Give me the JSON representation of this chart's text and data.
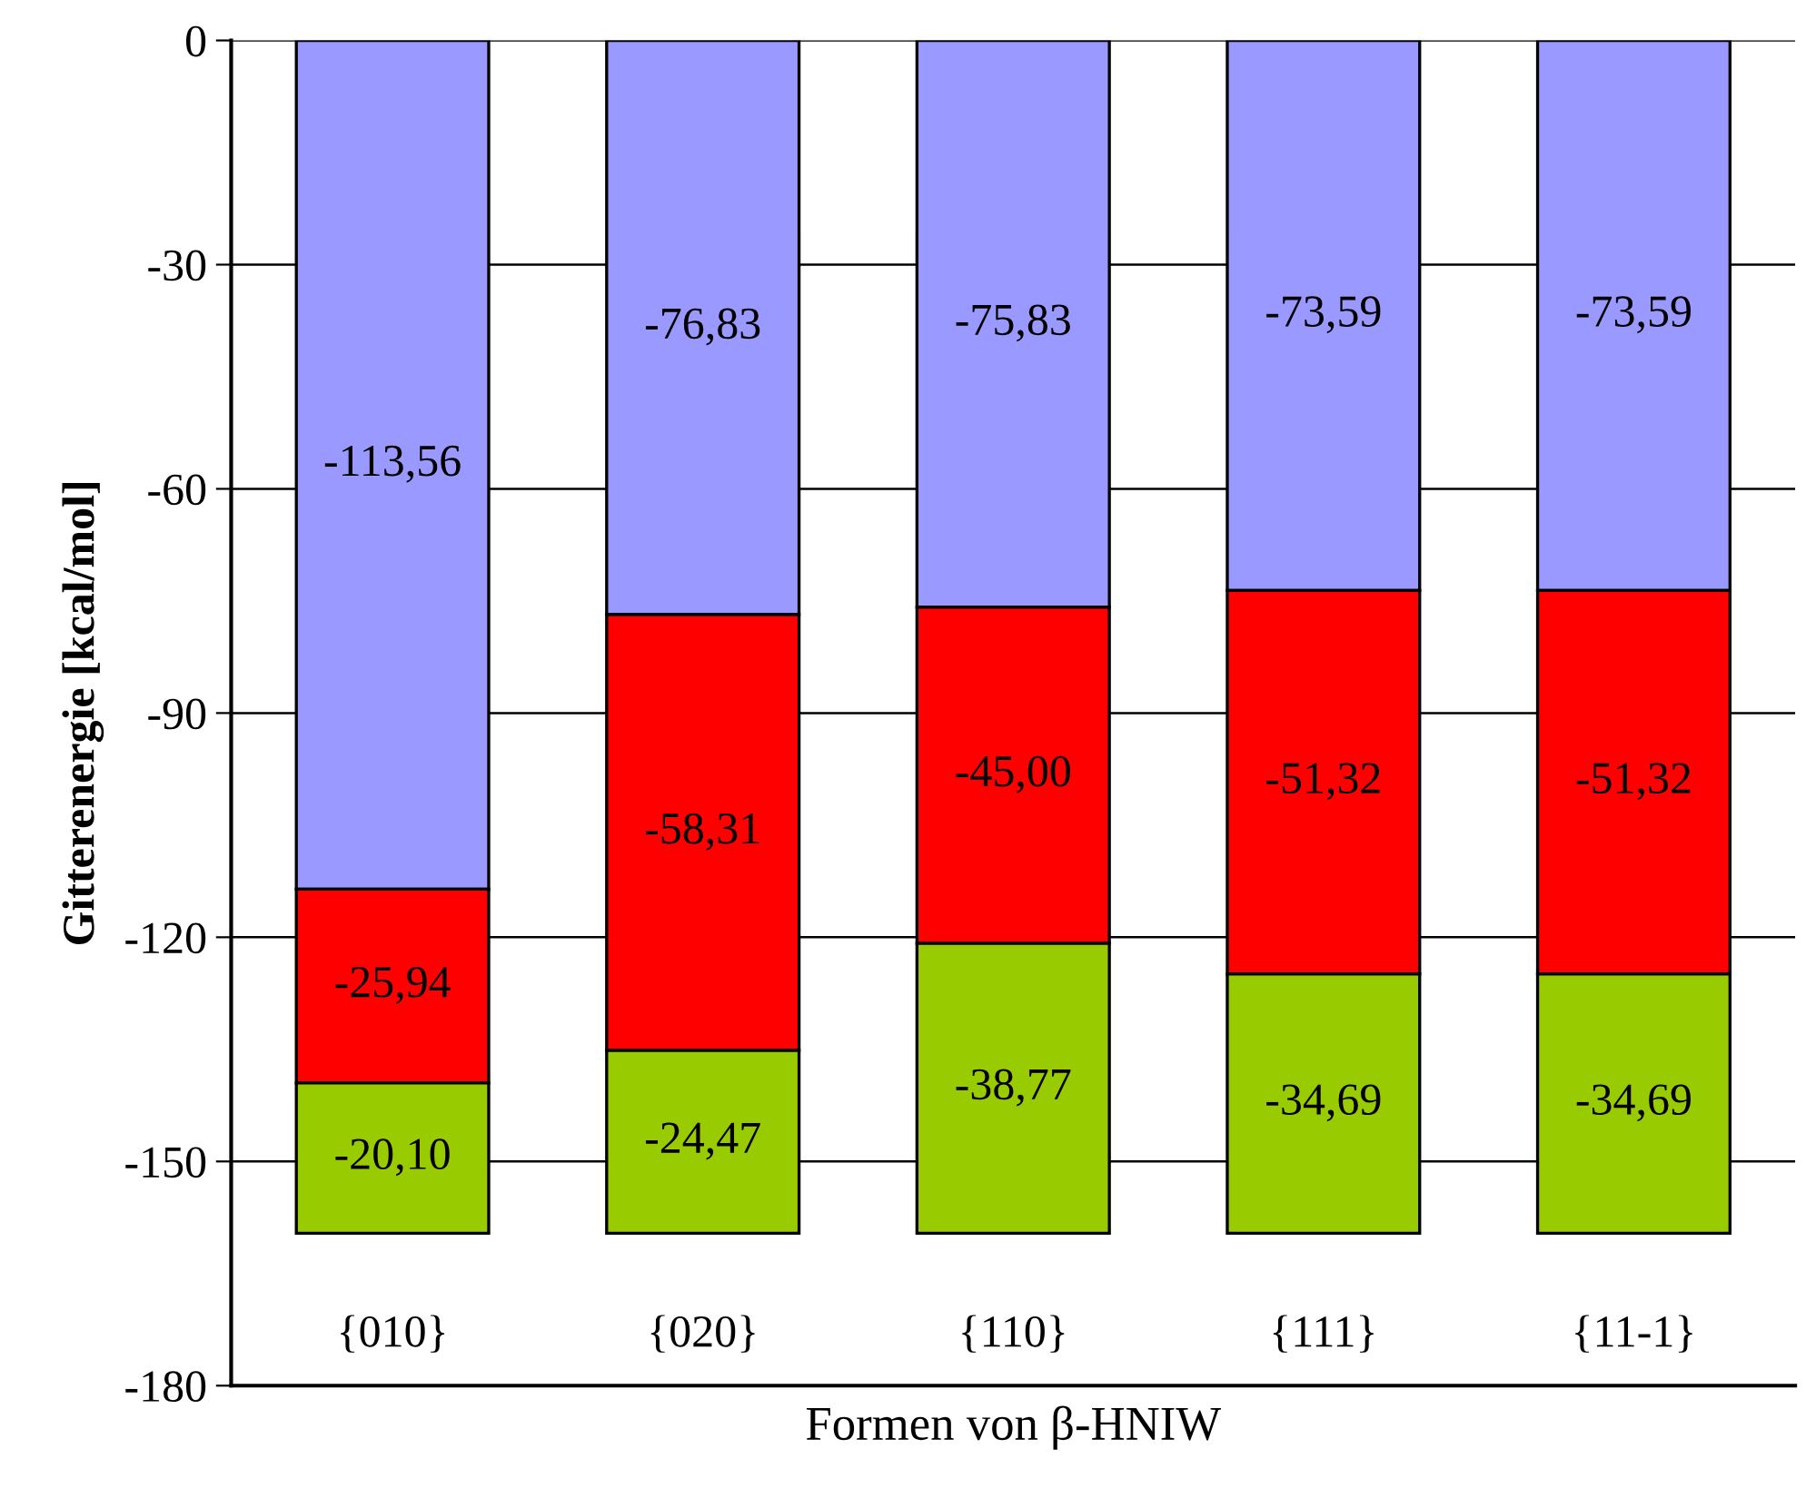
{
  "chart_data": {
    "type": "bar",
    "stacked": true,
    "xlabel": "Formen von β-HNIW",
    "ylabel": "Gitterenergie [kcal/mol]",
    "categories": [
      "{010}",
      "{020}",
      "{110}",
      "{111}",
      "{11-1}"
    ],
    "series": [
      {
        "color": "#9999ff",
        "values": [
          -113.56,
          -76.83,
          -75.83,
          -73.59,
          -73.59
        ],
        "value_labels": [
          "-113,56",
          "-76,83",
          "-75,83",
          "-73,59",
          "-73,59"
        ]
      },
      {
        "color": "#ff0000",
        "values": [
          -25.94,
          -58.31,
          -45.0,
          -51.32,
          -51.32
        ],
        "value_labels": [
          "-25,94",
          "-58,31",
          "-45,00",
          "-51,32",
          "-51,32"
        ]
      },
      {
        "color": "#99cc00",
        "values": [
          -20.1,
          -24.47,
          -38.77,
          -34.69,
          -34.69
        ],
        "value_labels": [
          "-20,10",
          "-24,47",
          "-38,77",
          "-34,69",
          "-34,69"
        ]
      }
    ],
    "ylim": [
      -180,
      0
    ],
    "yticks": [
      0,
      -30,
      -60,
      -90,
      -120,
      -150,
      -180
    ],
    "grid": "y",
    "legend": false
  }
}
